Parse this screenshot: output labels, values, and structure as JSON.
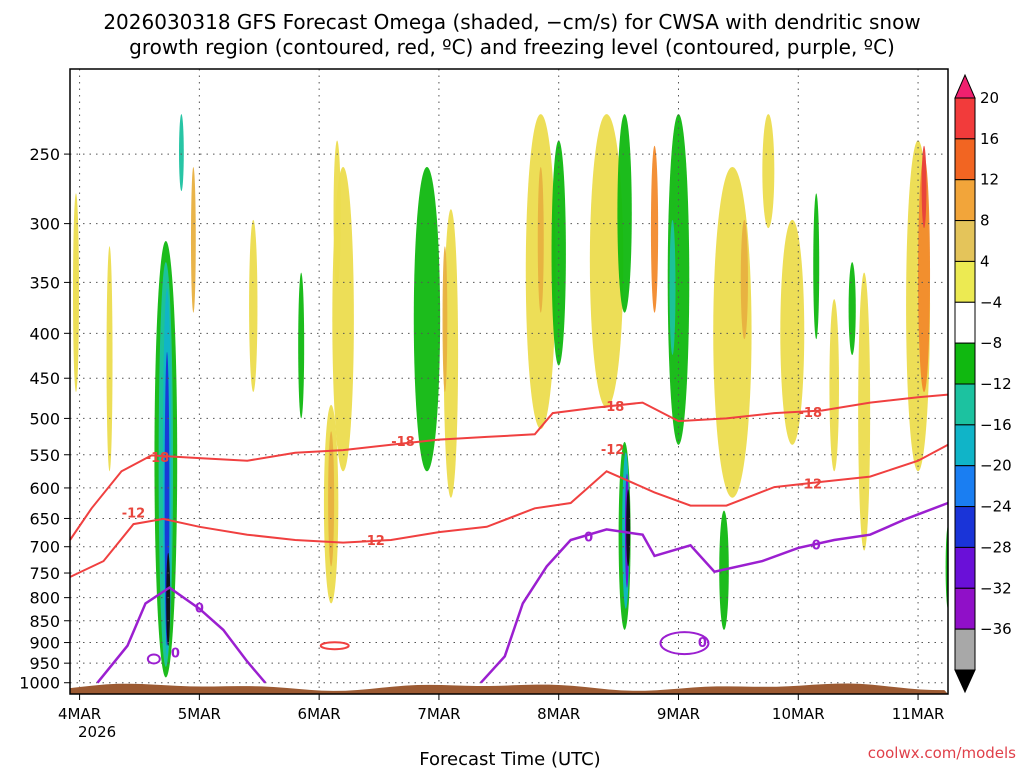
{
  "chart_data": {
    "type": "heatmap",
    "title_line1": "2026030318 GFS Forecast Omega (shaded, −cm/s) for CWSA with dendritic snow",
    "title_line2": "growth region (contoured, red, ºC) and freezing level (contoured, purple, ºC)",
    "xlabel": "Forecast Time (UTC)",
    "credit": "coolwx.com/models",
    "x_start_date": "4MAR",
    "x_start_year": "2026",
    "x_ticks": [
      {
        "label": "4MAR",
        "day": 0
      },
      {
        "label": "5MAR",
        "day": 1
      },
      {
        "label": "6MAR",
        "day": 2
      },
      {
        "label": "7MAR",
        "day": 3
      },
      {
        "label": "8MAR",
        "day": 4
      },
      {
        "label": "9MAR",
        "day": 5
      },
      {
        "label": "10MAR",
        "day": 6
      },
      {
        "label": "11MAR",
        "day": 7
      }
    ],
    "xlim_days": [
      -0.08,
      7.25
    ],
    "y_ticks_hpa": [
      250,
      300,
      350,
      400,
      450,
      500,
      550,
      600,
      650,
      700,
      750,
      800,
      850,
      900,
      950,
      1000
    ],
    "y_tick_labels": [
      "250",
      "300",
      "350",
      "400",
      "450",
      "500",
      "550",
      "600",
      "650",
      "700",
      "750",
      "800",
      "850",
      "900",
      "950",
      "1000"
    ],
    "ylim_hpa": [
      200,
      1030
    ],
    "colorbar": {
      "levels": [
        "20",
        "16",
        "12",
        "8",
        "4",
        "−4",
        "−8",
        "−12",
        "−16",
        "−20",
        "−24",
        "−28",
        "−32",
        "−36"
      ],
      "colors": [
        "#f0206e",
        "#f23b3b",
        "#f26522",
        "#f2a53a",
        "#e4c45a",
        "#ecea52",
        "#ffffff",
        "#10b810",
        "#1cc2a0",
        "#10b4c8",
        "#1a7ef2",
        "#1a34d8",
        "#6a10d8",
        "#9010c8",
        "#a8a8a8",
        "#000000"
      ]
    },
    "dgz_contours": [
      {
        "level": "-18",
        "points": [
          [
            -0.08,
            0.73
          ],
          [
            0.1,
            0.67
          ],
          [
            0.35,
            0.6
          ],
          [
            0.6,
            0.57
          ],
          [
            1.0,
            0.575
          ],
          [
            1.4,
            0.58
          ],
          [
            1.8,
            0.565
          ],
          [
            2.2,
            0.56
          ],
          [
            2.6,
            0.55
          ],
          [
            3.0,
            0.54
          ],
          [
            3.4,
            0.535
          ],
          [
            3.8,
            0.53
          ],
          [
            3.95,
            0.49
          ],
          [
            4.3,
            0.48
          ],
          [
            4.7,
            0.47
          ],
          [
            5.0,
            0.505
          ],
          [
            5.4,
            0.5
          ],
          [
            5.8,
            0.49
          ],
          [
            6.2,
            0.485
          ],
          [
            6.6,
            0.47
          ],
          [
            7.0,
            0.46
          ],
          [
            7.25,
            0.455
          ]
        ]
      },
      {
        "level": "-12",
        "points": [
          [
            -0.08,
            0.8
          ],
          [
            0.2,
            0.77
          ],
          [
            0.45,
            0.7
          ],
          [
            0.7,
            0.69
          ],
          [
            1.0,
            0.705
          ],
          [
            1.4,
            0.72
          ],
          [
            1.8,
            0.73
          ],
          [
            2.2,
            0.735
          ],
          [
            2.6,
            0.73
          ],
          [
            3.0,
            0.715
          ],
          [
            3.4,
            0.705
          ],
          [
            3.8,
            0.67
          ],
          [
            4.1,
            0.66
          ],
          [
            4.4,
            0.6
          ],
          [
            4.8,
            0.64
          ],
          [
            5.1,
            0.665
          ],
          [
            5.4,
            0.665
          ],
          [
            5.8,
            0.63
          ],
          [
            6.2,
            0.62
          ],
          [
            6.6,
            0.61
          ],
          [
            7.0,
            0.58
          ],
          [
            7.25,
            0.55
          ]
        ]
      }
    ],
    "dgz_labels": [
      {
        "text": "-18",
        "day": 0.65,
        "rel": 0.575
      },
      {
        "text": "-18",
        "day": 2.7,
        "rel": 0.545
      },
      {
        "text": "-18",
        "day": 4.45,
        "rel": 0.478
      },
      {
        "text": "-18",
        "day": 6.1,
        "rel": 0.49
      },
      {
        "text": "-12",
        "day": 0.45,
        "rel": 0.68
      },
      {
        "text": "-12",
        "day": 2.45,
        "rel": 0.732
      },
      {
        "text": "-12",
        "day": 4.45,
        "rel": 0.56
      },
      {
        "text": "-12",
        "day": 6.1,
        "rel": 0.625
      }
    ],
    "freezing_contours": [
      {
        "level": "0",
        "points": [
          [
            0.15,
            1.0
          ],
          [
            0.4,
            0.93
          ],
          [
            0.55,
            0.85
          ],
          [
            0.75,
            0.82
          ],
          [
            1.0,
            0.86
          ],
          [
            1.2,
            0.9
          ],
          [
            1.4,
            0.96
          ],
          [
            1.55,
            1.0
          ]
        ]
      },
      {
        "level": "0",
        "points": [
          [
            3.35,
            1.0
          ],
          [
            3.55,
            0.95
          ],
          [
            3.7,
            0.85
          ],
          [
            3.9,
            0.78
          ],
          [
            4.1,
            0.73
          ],
          [
            4.4,
            0.71
          ],
          [
            4.7,
            0.72
          ],
          [
            4.8,
            0.76
          ],
          [
            5.1,
            0.74
          ],
          [
            5.3,
            0.79
          ],
          [
            5.7,
            0.77
          ],
          [
            6.0,
            0.745
          ],
          [
            6.3,
            0.73
          ],
          [
            6.6,
            0.72
          ],
          [
            6.9,
            0.69
          ],
          [
            7.25,
            0.66
          ]
        ]
      }
    ],
    "freezing_labels": [
      {
        "text": "0",
        "day": 1.0,
        "rel": 0.86
      },
      {
        "text": "0",
        "day": 0.8,
        "rel": 0.945
      },
      {
        "text": "0",
        "day": 4.25,
        "rel": 0.725
      },
      {
        "text": "0",
        "day": 6.15,
        "rel": 0.74
      },
      {
        "text": "0",
        "day": 5.2,
        "rel": 0.925
      }
    ],
    "dgz_small_loop_day": 2.13,
    "omega_blobs": [
      {
        "day": 0.72,
        "y0": 0.24,
        "y1": 0.99,
        "w": 0.19,
        "value": "-8"
      },
      {
        "day": 0.72,
        "y0": 0.28,
        "y1": 0.97,
        "w": 0.12,
        "value": "-12"
      },
      {
        "day": 0.73,
        "y0": 0.33,
        "y1": 0.95,
        "w": 0.07,
        "value": "-16"
      },
      {
        "day": 0.73,
        "y0": 0.45,
        "y1": 0.93,
        "w": 0.04,
        "value": "-24"
      },
      {
        "day": 0.74,
        "y0": 0.83,
        "y1": 0.93,
        "w": 0.02,
        "value": "-36"
      },
      {
        "day": 4.55,
        "y0": 0.62,
        "y1": 0.9,
        "w": 0.1,
        "value": "-8"
      },
      {
        "day": 4.56,
        "y0": 0.64,
        "y1": 0.86,
        "w": 0.06,
        "value": "-16"
      },
      {
        "day": 4.57,
        "y0": 0.68,
        "y1": 0.82,
        "w": 0.03,
        "value": "-28"
      },
      {
        "day": 4.58,
        "y0": 0.71,
        "y1": 0.78,
        "w": 0.015,
        "value": "-36"
      },
      {
        "day": 5.0,
        "y0": 0.0,
        "y1": 0.55,
        "w": 0.18,
        "value": "-8"
      },
      {
        "day": 4.8,
        "y0": 0.06,
        "y1": 0.3,
        "w": 0.06,
        "value": "12"
      },
      {
        "day": 4.95,
        "y0": 0.2,
        "y1": 0.38,
        "w": 0.05,
        "value": "-12"
      },
      {
        "day": 5.38,
        "y0": 0.75,
        "y1": 0.9,
        "w": 0.08,
        "value": "-8"
      },
      {
        "day": 0.95,
        "y0": 0.1,
        "y1": 0.3,
        "w": 0.04,
        "value": "8"
      },
      {
        "day": 0.85,
        "y0": 0.0,
        "y1": 0.07,
        "w": 0.04,
        "value": "-12"
      },
      {
        "day": 2.2,
        "y0": 0.1,
        "y1": 0.6,
        "w": 0.18,
        "value": "4"
      },
      {
        "day": 2.1,
        "y0": 0.55,
        "y1": 0.85,
        "w": 0.12,
        "value": "4"
      },
      {
        "day": 2.1,
        "y0": 0.6,
        "y1": 0.78,
        "w": 0.05,
        "value": "8"
      },
      {
        "day": 2.9,
        "y0": 0.1,
        "y1": 0.6,
        "w": 0.22,
        "value": "-8"
      },
      {
        "day": 3.1,
        "y0": 0.18,
        "y1": 0.65,
        "w": 0.12,
        "value": "4"
      },
      {
        "day": 3.05,
        "y0": 0.25,
        "y1": 0.45,
        "w": 0.04,
        "value": "8"
      },
      {
        "day": 3.85,
        "y0": 0.0,
        "y1": 0.52,
        "w": 0.25,
        "value": "4"
      },
      {
        "day": 3.85,
        "y0": 0.1,
        "y1": 0.3,
        "w": 0.05,
        "value": "8"
      },
      {
        "day": 4.0,
        "y0": 0.05,
        "y1": 0.4,
        "w": 0.12,
        "value": "-8"
      },
      {
        "day": 4.4,
        "y0": 0.0,
        "y1": 0.48,
        "w": 0.28,
        "value": "4"
      },
      {
        "day": 4.55,
        "y0": 0.0,
        "y1": 0.3,
        "w": 0.12,
        "value": "-8"
      },
      {
        "day": 5.45,
        "y0": 0.1,
        "y1": 0.65,
        "w": 0.32,
        "value": "4"
      },
      {
        "day": 5.55,
        "y0": 0.2,
        "y1": 0.35,
        "w": 0.06,
        "value": "8"
      },
      {
        "day": 5.95,
        "y0": 0.2,
        "y1": 0.55,
        "w": 0.2,
        "value": "4"
      },
      {
        "day": 6.55,
        "y0": 0.3,
        "y1": 0.75,
        "w": 0.1,
        "value": "4"
      },
      {
        "day": 6.3,
        "y0": 0.35,
        "y1": 0.6,
        "w": 0.08,
        "value": "4"
      },
      {
        "day": 7.0,
        "y0": 0.05,
        "y1": 0.6,
        "w": 0.2,
        "value": "4"
      },
      {
        "day": 7.05,
        "y0": 0.08,
        "y1": 0.45,
        "w": 0.1,
        "value": "12"
      },
      {
        "day": 7.05,
        "y0": 0.06,
        "y1": 0.14,
        "w": 0.04,
        "value": "20"
      },
      {
        "day": -0.03,
        "y0": 0.15,
        "y1": 0.45,
        "w": 0.05,
        "value": "4"
      },
      {
        "day": 0.25,
        "y0": 0.25,
        "y1": 0.6,
        "w": 0.05,
        "value": "4"
      },
      {
        "day": 1.45,
        "y0": 0.2,
        "y1": 0.45,
        "w": 0.07,
        "value": "4"
      },
      {
        "day": 1.85,
        "y0": 0.3,
        "y1": 0.5,
        "w": 0.05,
        "value": "-8"
      },
      {
        "day": 2.15,
        "y0": 0.05,
        "y1": 0.25,
        "w": 0.06,
        "value": "4"
      },
      {
        "day": 6.45,
        "y0": 0.28,
        "y1": 0.38,
        "w": 0.06,
        "value": "-8"
      },
      {
        "day": 7.25,
        "y0": 0.78,
        "y1": 0.86,
        "w": 0.04,
        "value": "-8"
      },
      {
        "day": 5.75,
        "y0": 0.0,
        "y1": 0.14,
        "w": 0.1,
        "value": "4"
      },
      {
        "day": 6.15,
        "y0": 0.15,
        "y1": 0.35,
        "w": 0.05,
        "value": "-8"
      }
    ]
  }
}
